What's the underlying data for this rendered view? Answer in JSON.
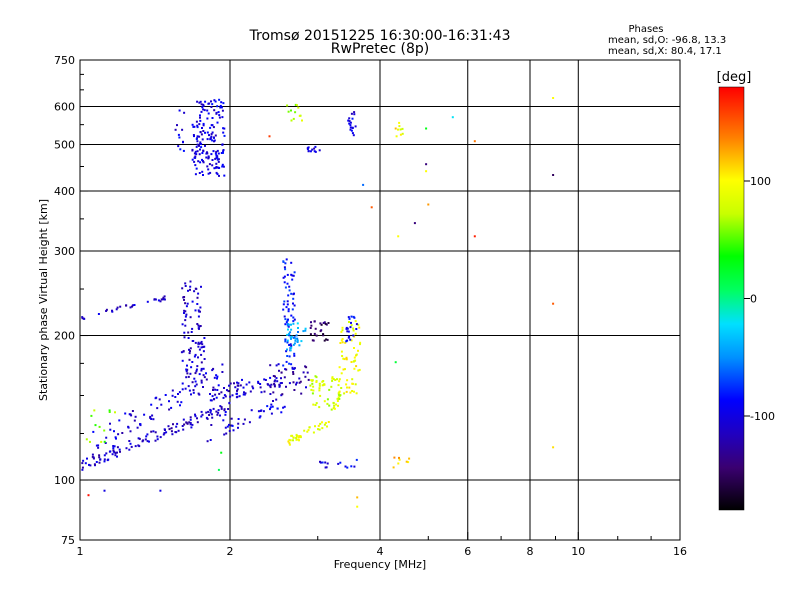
{
  "header": {
    "title_line1": "Tromsø 20151225 16:30:00-16:31:43",
    "title_line2": "RwPretec (8p)",
    "phase_heading": "Phases",
    "phase_o": "mean, sd,O: -96.8, 13.3",
    "phase_x": "mean, sd,X:  80.4, 17.1"
  },
  "colorbar": {
    "label": "[deg]",
    "ticks": [
      {
        "value": 100,
        "label": "100"
      },
      {
        "value": 0,
        "label": "0"
      },
      {
        "value": -100,
        "label": "-100"
      }
    ],
    "range": [
      -180,
      180
    ]
  },
  "chart_data": {
    "type": "scatter",
    "title": "Tromsø 20151225 16:30:00-16:31:43",
    "subtitle": "RwPretec (8p)",
    "xlabel": "Frequency [MHz]",
    "ylabel": "Stationary phase Virtual Height [km]",
    "x_scale": "log",
    "y_scale": "log",
    "xlim": [
      1,
      16
    ],
    "ylim": [
      75,
      750
    ],
    "x_ticks": [
      {
        "value": 1,
        "label": "1"
      },
      {
        "value": 2,
        "label": "2"
      },
      {
        "value": 4,
        "label": "4"
      },
      {
        "value": 6,
        "label": "6"
      },
      {
        "value": 8,
        "label": "8"
      },
      {
        "value": 10,
        "label": "10"
      },
      {
        "value": 16,
        "label": "16"
      }
    ],
    "y_ticks": [
      {
        "value": 75,
        "label": "75"
      },
      {
        "value": 100,
        "label": "100"
      },
      {
        "value": 200,
        "label": "200"
      },
      {
        "value": 300,
        "label": "300"
      },
      {
        "value": 400,
        "label": "400"
      },
      {
        "value": 500,
        "label": "500"
      },
      {
        "value": 600,
        "label": "600"
      },
      {
        "value": 750,
        "label": "750"
      }
    ],
    "x_gridlines": [
      2,
      4,
      6,
      8,
      10
    ],
    "y_gridlines": [
      100,
      200,
      300,
      400,
      500,
      600
    ],
    "minor_x_ticks": [
      3,
      5,
      7,
      9,
      12,
      14
    ],
    "minor_y_ticks": [
      125,
      150,
      175,
      250,
      350,
      450,
      550,
      650,
      700
    ],
    "colorscale_deg": [
      -180,
      180
    ],
    "clusters": [
      {
        "kind": "line",
        "f0": 1.01,
        "f1": 2.0,
        "h0": 108,
        "h1": 142,
        "phase": -110,
        "n": 130,
        "jitter": 0.03
      },
      {
        "kind": "line",
        "f0": 1.05,
        "f1": 1.95,
        "h0": 120,
        "h1": 168,
        "phase": -105,
        "n": 70,
        "jitter": 0.05
      },
      {
        "kind": "blob",
        "f0": 1.6,
        "f1": 1.78,
        "h0": 150,
        "h1": 260,
        "phase": -110,
        "n": 110
      },
      {
        "kind": "line",
        "f0": 1.8,
        "f1": 2.55,
        "h0": 150,
        "h1": 162,
        "phase": -108,
        "n": 70,
        "jitter": 0.04
      },
      {
        "kind": "line",
        "f0": 1.8,
        "f1": 2.6,
        "h0": 125,
        "h1": 145,
        "phase": -100,
        "n": 40,
        "jitter": 0.04
      },
      {
        "kind": "line",
        "f0": 1.01,
        "f1": 1.5,
        "h0": 218,
        "h1": 240,
        "phase": -110,
        "n": 30,
        "jitter": 0.01
      },
      {
        "kind": "blob",
        "f0": 1.68,
        "f1": 1.95,
        "h0": 430,
        "h1": 620,
        "phase": -100,
        "n": 170
      },
      {
        "kind": "blob",
        "f0": 1.55,
        "f1": 1.62,
        "h0": 480,
        "h1": 600,
        "phase": -100,
        "n": 12
      },
      {
        "kind": "blob",
        "f0": 2.55,
        "f1": 2.7,
        "h0": 170,
        "h1": 290,
        "phase": -85,
        "n": 70
      },
      {
        "kind": "blob",
        "f0": 2.6,
        "f1": 2.85,
        "h0": 185,
        "h1": 215,
        "phase": -40,
        "n": 35
      },
      {
        "kind": "blob",
        "f0": 2.9,
        "f1": 3.2,
        "h0": 195,
        "h1": 215,
        "phase": -150,
        "n": 25
      },
      {
        "kind": "blob",
        "f0": 2.4,
        "f1": 2.9,
        "h0": 150,
        "h1": 175,
        "phase": -120,
        "n": 40
      },
      {
        "kind": "blob",
        "f0": 2.9,
        "f1": 3.4,
        "h0": 140,
        "h1": 165,
        "phase": 80,
        "n": 60
      },
      {
        "kind": "blob",
        "f0": 3.3,
        "f1": 3.65,
        "h0": 150,
        "h1": 215,
        "phase": 95,
        "n": 60
      },
      {
        "kind": "blob",
        "f0": 3.4,
        "f1": 3.6,
        "h0": 190,
        "h1": 220,
        "phase": -95,
        "n": 20
      },
      {
        "kind": "line",
        "f0": 2.6,
        "f1": 3.2,
        "h0": 120,
        "h1": 133,
        "phase": 90,
        "n": 40,
        "jitter": 0.02
      },
      {
        "kind": "blob",
        "f0": 2.6,
        "f1": 2.8,
        "h0": 560,
        "h1": 610,
        "phase": 70,
        "n": 12
      },
      {
        "kind": "blob",
        "f0": 2.8,
        "f1": 3.05,
        "h0": 480,
        "h1": 495,
        "phase": -110,
        "n": 12
      },
      {
        "kind": "blob",
        "f0": 3.45,
        "f1": 3.58,
        "h0": 515,
        "h1": 585,
        "phase": -100,
        "n": 18
      },
      {
        "kind": "blob",
        "f0": 3.0,
        "f1": 3.6,
        "h0": 106,
        "h1": 111,
        "phase": -95,
        "n": 14
      },
      {
        "kind": "blob",
        "f0": 4.25,
        "f1": 4.6,
        "h0": 106,
        "h1": 112,
        "phase": 120,
        "n": 8
      },
      {
        "kind": "blob",
        "f0": 4.3,
        "f1": 4.45,
        "h0": 520,
        "h1": 555,
        "phase": 90,
        "n": 8
      },
      {
        "kind": "blob",
        "f0": 1.02,
        "f1": 1.2,
        "h0": 120,
        "h1": 140,
        "phase": 60,
        "n": 12
      }
    ],
    "points": [
      [
        1.04,
        93,
        175
      ],
      [
        1.12,
        95,
        -100
      ],
      [
        1.45,
        95,
        -100
      ],
      [
        2.4,
        520,
        160
      ],
      [
        3.85,
        370,
        150
      ],
      [
        3.7,
        412,
        -60
      ],
      [
        4.3,
        540,
        120
      ],
      [
        4.95,
        540,
        30
      ],
      [
        4.95,
        455,
        -140
      ],
      [
        4.95,
        440,
        100
      ],
      [
        5.0,
        375,
        130
      ],
      [
        5.6,
        570,
        -20
      ],
      [
        6.2,
        508,
        140
      ],
      [
        6.2,
        322,
        170
      ],
      [
        4.35,
        322,
        100
      ],
      [
        4.7,
        343,
        -140
      ],
      [
        4.3,
        176,
        20
      ],
      [
        8.9,
        625,
        100
      ],
      [
        8.9,
        432,
        -150
      ],
      [
        8.9,
        233,
        150
      ],
      [
        8.9,
        117,
        110
      ],
      [
        3.6,
        88,
        100
      ],
      [
        3.6,
        92,
        120
      ],
      [
        1.92,
        114,
        30
      ],
      [
        1.9,
        105,
        10
      ]
    ]
  }
}
